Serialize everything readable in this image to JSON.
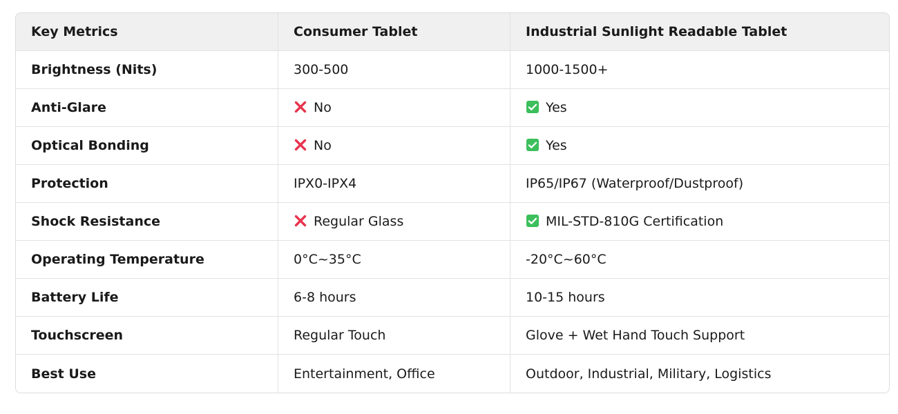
{
  "table": {
    "header": [
      "Key Metrics",
      "Consumer Tablet",
      "Industrial Sunlight Readable Tablet"
    ],
    "rows": [
      [
        "Brightness (Nits)",
        "300-500",
        "1000-1500+"
      ],
      [
        "Anti-Glare",
        {
          "icon": "cross",
          "text": "No"
        },
        {
          "icon": "check",
          "text": "Yes"
        }
      ],
      [
        "Optical Bonding",
        {
          "icon": "cross",
          "text": "No"
        },
        {
          "icon": "check",
          "text": "Yes"
        }
      ],
      [
        "Protection",
        "IPX0-IPX4",
        "IP65/IP67 (Waterproof/Dustproof)"
      ],
      [
        "Shock Resistance",
        {
          "icon": "cross",
          "text": "Regular Glass"
        },
        {
          "icon": "check",
          "text": "MIL-STD-810G Certification"
        }
      ],
      [
        "Operating Temperature",
        "0°C~35°C",
        "-20°C~60°C"
      ],
      [
        "Battery Life",
        "6-8 hours",
        "10-15 hours"
      ],
      [
        "Touchscreen",
        "Regular Touch",
        "Glove + Wet Hand Touch Support"
      ],
      [
        "Best Use",
        "Entertainment, Office",
        "Outdoor, Industrial, Military, Logistics"
      ]
    ]
  }
}
